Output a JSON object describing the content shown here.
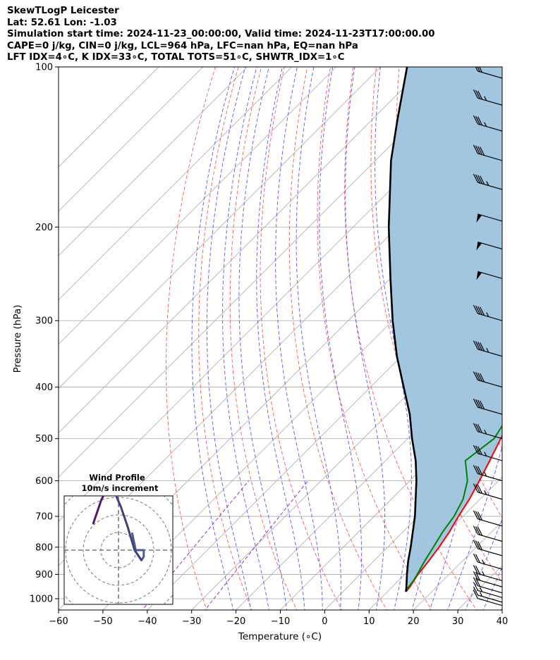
{
  "header": {
    "line1": "SkewTLogP Leicester",
    "line2": "Lat: 52.61   Lon: -1.03",
    "line3": "Simulation start time: 2024-11-23_00:00:00, Valid time: 2024-11-23T17:00:00.00",
    "line4": "CAPE=0 j/kg, CIN=0 j/kg, LCL=964 hPa, LFC=nan hPa, EQ=nan hPa",
    "line5": "LFT IDX=4∘C, K IDX=33∘C, TOTAL TOTS=51∘C, SHWTR_IDX=1∘C"
  },
  "chart_data": {
    "type": "line",
    "chart_kind": "skew-t log-p",
    "xlabel": "Temperature (∘C)",
    "ylabel": "Pressure (hPa)",
    "xlim": [
      -60,
      40
    ],
    "ylim": [
      1050,
      100
    ],
    "y_scale": "log",
    "x_ticks": [
      -60,
      -50,
      -40,
      -30,
      -20,
      -10,
      0,
      10,
      20,
      30,
      40
    ],
    "x_tick_labels": [
      "−60",
      "−50",
      "−40",
      "−30",
      "−20",
      "−10",
      "0",
      "10",
      "20",
      "30",
      "40"
    ],
    "y_ticks": [
      1000,
      900,
      800,
      700,
      600,
      500,
      400,
      300,
      200,
      100
    ],
    "y_tick_labels": [
      "1000",
      "900",
      "800",
      "700",
      "600",
      "500",
      "400",
      "300",
      "200",
      "100"
    ],
    "grid": true,
    "skew_degrees": 45,
    "colors": {
      "temperature": "#ff0000",
      "dewpoint": "#008000",
      "parcel": "#000000",
      "cape_fill": "#a3c6e0",
      "dry_adiabat": "#ff6666",
      "moist_adiabat": "#6666ff",
      "mixing_ratio": "#9933cc",
      "grid": "#aaaaaa"
    },
    "series": [
      {
        "pressure": [
          970,
          950,
          925,
          900,
          850,
          800,
          750,
          700,
          650,
          600,
          550,
          500,
          450,
          400,
          375,
          350,
          325,
          300,
          275,
          250,
          225,
          200,
          190,
          180,
          170,
          160,
          150,
          140,
          130,
          120,
          110,
          100
        ],
        "values": [
          14.2,
          14.0,
          13.5,
          13.0,
          12.4,
          11.6,
          10.5,
          9.0,
          7.6,
          5.7,
          3.5,
          1.0,
          -1.5,
          -4.2,
          -5.0,
          -6.7,
          -9.0,
          -11.5,
          -14.0,
          -17.5,
          -21.5,
          -25.5,
          -25.6,
          -24.3,
          -22.0,
          -19.5,
          -17.5,
          -15.8,
          -15.2,
          -14.0,
          -13.5,
          -13.0
        ]
      },
      {
        "pressure": [
          970,
          950,
          925,
          900,
          850,
          800,
          750,
          700,
          650,
          600,
          550,
          500,
          450,
          400,
          375,
          350,
          325,
          300,
          275,
          250,
          225,
          200,
          190,
          180,
          170,
          160,
          150,
          140,
          130,
          120,
          110,
          100
        ],
        "values": [
          14.0,
          13.7,
          13.4,
          12.8,
          11.5,
          10.3,
          9.0,
          8.0,
          6.2,
          3.0,
          -2.0,
          -0.5,
          -2.5,
          -4.0,
          -6.0,
          -9.0,
          -12.5,
          -15.0,
          -19.5,
          -22.0,
          -25.0,
          -29.0,
          -29.2,
          -29.4,
          -29.8,
          -29.6,
          -31.2,
          -31.5,
          -31.8,
          -30.5,
          -30.5,
          -30.5
        ]
      },
      {
        "pressure": [
          970,
          950,
          900,
          850,
          800,
          750,
          700,
          650,
          600,
          550,
          500,
          450,
          400,
          350,
          300,
          250,
          200,
          150,
          125,
          100
        ],
        "values": [
          14.2,
          13.2,
          10.5,
          7.8,
          5.2,
          2.3,
          -0.8,
          -4.5,
          -8.5,
          -13.2,
          -19.0,
          -25.0,
          -32.5,
          -41.0,
          -50.0,
          -60.0,
          -72.0,
          -86.5,
          -94.5,
          -104.0
        ]
      }
    ],
    "wind_barbs": {
      "pressure": [
        1030,
        1015,
        995,
        975,
        950,
        925,
        880,
        830,
        780,
        730,
        650,
        600,
        550,
        500,
        450,
        400,
        350,
        300,
        250,
        220,
        195,
        170,
        150,
        132,
        118,
        105
      ],
      "speed_kt": [
        10,
        15,
        15,
        20,
        20,
        25,
        25,
        30,
        30,
        30,
        35,
        35,
        35,
        35,
        40,
        40,
        45,
        45,
        50,
        50,
        50,
        45,
        40,
        35,
        35,
        30
      ]
    },
    "hodograph": {
      "title_line1": "Wind Profile",
      "title_line2": "10m/s increment",
      "ring_spacing_ms": 10,
      "u": [
        12,
        15,
        20,
        22,
        22,
        20,
        18,
        14,
        8,
        2,
        -3,
        -8,
        -12,
        -15,
        -18,
        -20,
        -22
      ],
      "v": [
        5,
        0,
        0,
        0,
        -2,
        -3,
        -2,
        0,
        7,
        13,
        17,
        19,
        17,
        15,
        12,
        10,
        8
      ],
      "colors": [
        "#4a5f8f",
        "#40407a",
        "#4a1c6b"
      ]
    }
  }
}
